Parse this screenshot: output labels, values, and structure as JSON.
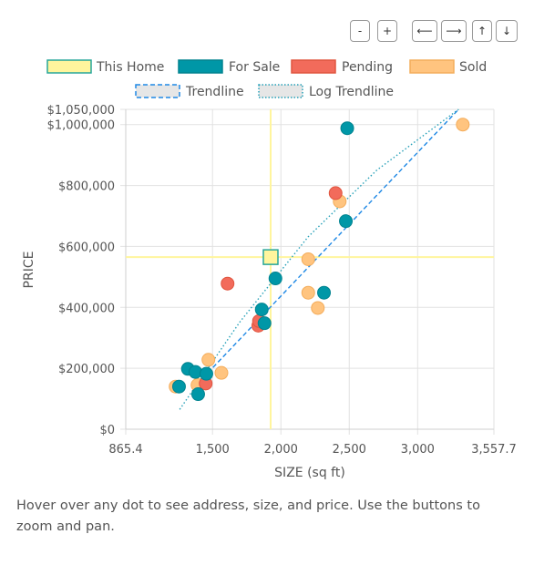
{
  "controls": {
    "zoom_out": "-",
    "zoom_in": "+",
    "pan_left": "⟵",
    "pan_right": "⟶",
    "pan_up": "↑",
    "pan_down": "↓"
  },
  "caption": "Hover over any dot to see address, size, and price. Use the buttons to zoom and pan.",
  "colors": {
    "this_home": "#fff59d",
    "this_home_border": "#26a69a",
    "for_sale": "#0097a7",
    "pending": "#f26b5b",
    "sold": "#ffc47f",
    "trendline": "#1e88e5",
    "log_trendline": "#26a0b8",
    "crosshair": "#fff59d",
    "grid": "#e2e2e2"
  },
  "chart_data": {
    "type": "scatter",
    "xlabel": "SIZE (sq ft)",
    "ylabel": "PRICE",
    "xlim": [
      865.4,
      3557.7
    ],
    "ylim": [
      0,
      1050000
    ],
    "x_ticks": [
      865.4,
      1500,
      2000,
      2500,
      3000,
      3557.7
    ],
    "x_tick_labels": [
      "865.4",
      "1,500",
      "2,000",
      "2,500",
      "3,000",
      "3,557.7"
    ],
    "y_ticks": [
      0,
      200000,
      400000,
      600000,
      800000,
      1000000,
      1050000
    ],
    "y_tick_labels": [
      "$0",
      "$200,000",
      "$400,000",
      "$600,000",
      "$800,000",
      "$1,000,000",
      "$1,050,000"
    ],
    "grid": true,
    "legend": [
      {
        "name": "This Home",
        "key": "this_home"
      },
      {
        "name": "For Sale",
        "key": "for_sale"
      },
      {
        "name": "Pending",
        "key": "pending"
      },
      {
        "name": "Sold",
        "key": "sold"
      },
      {
        "name": "Trendline",
        "key": "trendline"
      },
      {
        "name": "Log Trendline",
        "key": "log_trendline"
      }
    ],
    "series": [
      {
        "name": "Sold",
        "key": "sold",
        "points": [
          [
            1230,
            140000
          ],
          [
            1390,
            145000
          ],
          [
            1470,
            228000
          ],
          [
            1565,
            185000
          ],
          [
            2200,
            558000
          ],
          [
            2200,
            448000
          ],
          [
            2270,
            398000
          ],
          [
            2430,
            748000
          ],
          [
            3330,
            1000000
          ]
        ]
      },
      {
        "name": "Pending",
        "key": "pending",
        "points": [
          [
            1450,
            150000
          ],
          [
            1610,
            478000
          ],
          [
            1835,
            340000
          ],
          [
            1840,
            355000
          ],
          [
            2400,
            775000
          ]
        ]
      },
      {
        "name": "For Sale",
        "key": "for_sale",
        "points": [
          [
            1255,
            140000
          ],
          [
            1320,
            198000
          ],
          [
            1375,
            188000
          ],
          [
            1395,
            115000
          ],
          [
            1455,
            182000
          ],
          [
            1860,
            393000
          ],
          [
            1880,
            348000
          ],
          [
            1960,
            495000
          ],
          [
            2315,
            448000
          ],
          [
            2475,
            683000
          ],
          [
            2485,
            988000
          ]
        ]
      },
      {
        "name": "This Home",
        "key": "this_home",
        "points": [
          [
            1925,
            565000
          ]
        ]
      }
    ],
    "this_home": {
      "x": 1925,
      "y": 565000
    },
    "trendline": [
      [
        1430,
        168000
      ],
      [
        3300,
        1050000
      ]
    ],
    "log_trendline": [
      [
        1260,
        65000
      ],
      [
        1700,
        352000
      ],
      [
        2200,
        632000
      ],
      [
        2700,
        850000
      ],
      [
        3300,
        1050000
      ]
    ]
  }
}
